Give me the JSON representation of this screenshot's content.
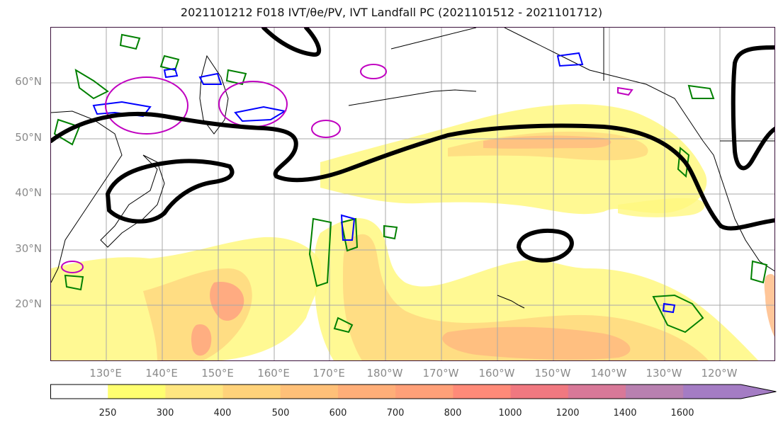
{
  "title": "2021101212 F018 IVT/θe/PV, IVT Landfall PC (2021101512 - 2021101712)",
  "lat_labels": [
    "60°N",
    "50°N",
    "40°N",
    "30°N",
    "20°N"
  ],
  "lon_labels": [
    "130°E",
    "140°E",
    "150°E",
    "160°E",
    "170°E",
    "180°W",
    "170°W",
    "160°W",
    "150°W",
    "140°W",
    "130°W",
    "120°W"
  ],
  "colorbar": {
    "levels": [
      "250",
      "300",
      "400",
      "500",
      "600",
      "700",
      "800",
      "1000",
      "1200",
      "1400",
      "1600"
    ],
    "colors": [
      "#ffffff",
      "#ffff70",
      "#ffe680",
      "#ffd27a",
      "#ffc078",
      "#ffae78",
      "#ffa078",
      "#ff8a78",
      "#f07880",
      "#d87898",
      "#b880b0",
      "#a47cc4"
    ]
  },
  "colors": {
    "ivt_light": "#fff880",
    "ivt_mid": "#ffd880",
    "ivt_high": "#ffb880",
    "ivt_peak": "#ff9a80",
    "pv_contour": "#008000",
    "theta_contour": "#0000ff",
    "magenta_contour": "#c000c0",
    "landfall_pc": "#000000",
    "coastline": "#000000",
    "grid": "#a8a8a8"
  }
}
